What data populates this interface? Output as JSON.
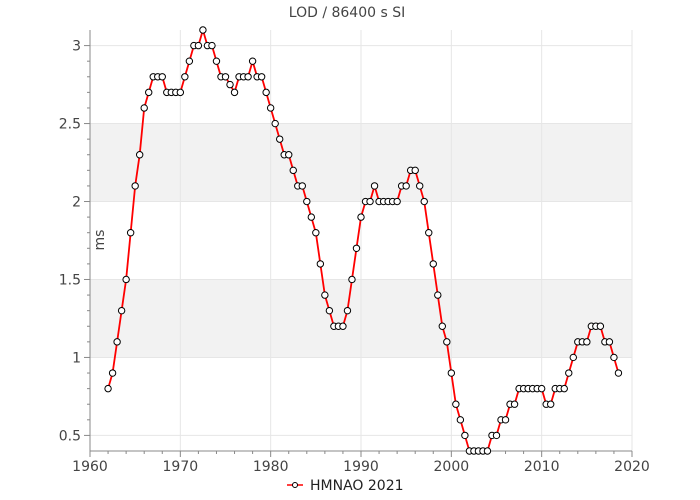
{
  "chart_data": {
    "type": "line",
    "title": "LOD / 86400 s SI",
    "xlabel": "",
    "ylabel": "ms",
    "xlim": [
      1960,
      2020
    ],
    "ylim": [
      0.4,
      3.1
    ],
    "x_ticks": [
      1960,
      1970,
      1980,
      1990,
      2000,
      2010,
      2020
    ],
    "y_ticks": [
      0.5,
      1,
      1.5,
      2,
      2.5,
      3
    ],
    "y_tick_labels": [
      "0.5",
      "1",
      "1.5",
      "2",
      "2.5",
      "3"
    ],
    "y_bands": [
      [
        1.0,
        1.5
      ],
      [
        2.0,
        2.5
      ]
    ],
    "grid": true,
    "legend_position": "bottom-center",
    "colors": {
      "line": "#ff0000",
      "marker_fill": "#ffffff",
      "marker_stroke": "#000000",
      "band": "#f2f2f2",
      "grid": "#e6e6e6"
    },
    "series": [
      {
        "name": "HMNAO 2021",
        "x": [
          1962.0,
          1962.5,
          1963.0,
          1963.5,
          1964.0,
          1964.5,
          1965.0,
          1965.5,
          1966.0,
          1966.5,
          1967.0,
          1967.5,
          1968.0,
          1968.5,
          1969.0,
          1969.5,
          1970.0,
          1970.5,
          1971.0,
          1971.5,
          1972.0,
          1972.5,
          1973.0,
          1973.5,
          1974.0,
          1974.5,
          1975.0,
          1975.5,
          1976.0,
          1976.5,
          1977.0,
          1977.5,
          1978.0,
          1978.5,
          1979.0,
          1979.5,
          1980.0,
          1980.5,
          1981.0,
          1981.5,
          1982.0,
          1982.5,
          1983.0,
          1983.5,
          1984.0,
          1984.5,
          1985.0,
          1985.5,
          1986.0,
          1986.5,
          1987.0,
          1987.5,
          1988.0,
          1988.5,
          1989.0,
          1989.5,
          1990.0,
          1990.5,
          1991.0,
          1991.5,
          1992.0,
          1992.5,
          1993.0,
          1993.5,
          1994.0,
          1994.5,
          1995.0,
          1995.5,
          1996.0,
          1996.5,
          1997.0,
          1997.5,
          1998.0,
          1998.5,
          1999.0,
          1999.5,
          2000.0,
          2000.5,
          2001.0,
          2001.5,
          2002.0,
          2002.5,
          2003.0,
          2003.5,
          2004.0,
          2004.5,
          2005.0,
          2005.5,
          2006.0,
          2006.5,
          2007.0,
          2007.5,
          2008.0,
          2008.5,
          2009.0,
          2009.5,
          2010.0,
          2010.5,
          2011.0,
          2011.5,
          2012.0,
          2012.5,
          2013.0,
          2013.5,
          2014.0,
          2014.5,
          2015.0,
          2015.5,
          2016.0,
          2016.5,
          2017.0,
          2017.5,
          2018.0,
          2018.5
        ],
        "y": [
          0.8,
          0.9,
          1.1,
          1.3,
          1.5,
          1.8,
          2.1,
          2.3,
          2.6,
          2.7,
          2.8,
          2.8,
          2.8,
          2.7,
          2.7,
          2.7,
          2.7,
          2.8,
          2.9,
          3.0,
          3.0,
          3.1,
          3.0,
          3.0,
          2.9,
          2.8,
          2.8,
          2.75,
          2.7,
          2.8,
          2.8,
          2.8,
          2.9,
          2.8,
          2.8,
          2.7,
          2.6,
          2.5,
          2.4,
          2.3,
          2.3,
          2.2,
          2.1,
          2.1,
          2.0,
          1.9,
          1.8,
          1.6,
          1.4,
          1.3,
          1.2,
          1.2,
          1.2,
          1.3,
          1.5,
          1.7,
          1.9,
          2.0,
          2.0,
          2.1,
          2.0,
          2.0,
          2.0,
          2.0,
          2.0,
          2.1,
          2.1,
          2.2,
          2.2,
          2.1,
          2.0,
          1.8,
          1.6,
          1.4,
          1.2,
          1.1,
          0.9,
          0.7,
          0.6,
          0.5,
          0.4,
          0.4,
          0.4,
          0.4,
          0.4,
          0.5,
          0.5,
          0.6,
          0.6,
          0.7,
          0.7,
          0.8,
          0.8,
          0.8,
          0.8,
          0.8,
          0.8,
          0.7,
          0.7,
          0.8,
          0.8,
          0.8,
          0.9,
          1.0,
          1.1,
          1.1,
          1.1,
          1.2,
          1.2,
          1.2,
          1.1,
          1.1,
          1.0,
          0.9
        ]
      }
    ]
  }
}
